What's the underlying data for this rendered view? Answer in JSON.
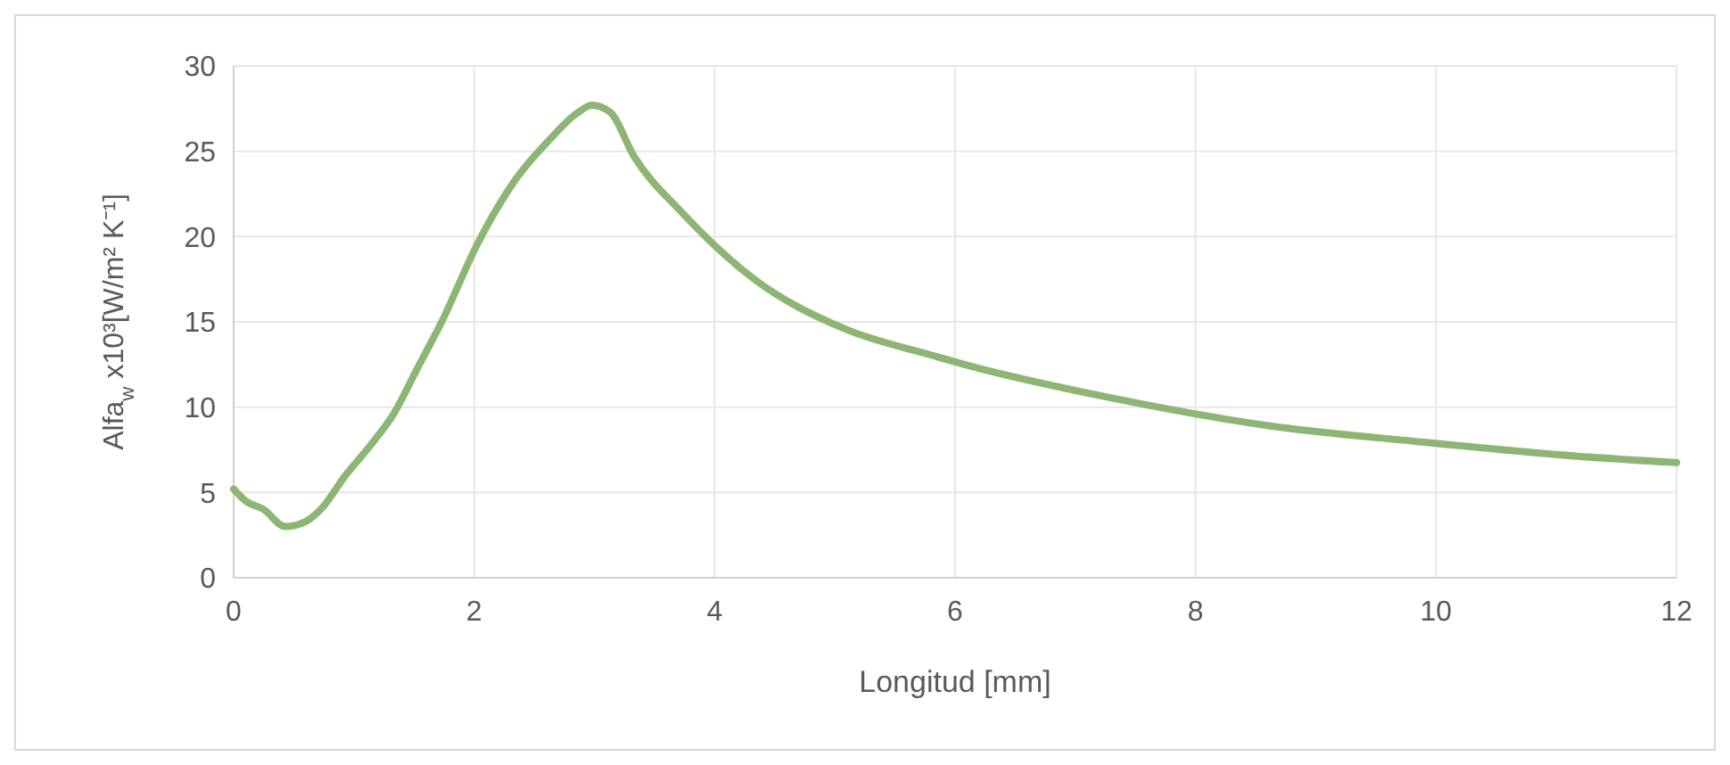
{
  "chart_data": {
    "type": "line",
    "xlabel": "Longitud [mm]",
    "ylabel": "Alfa$_{w}$ x10³[W/m² K⁻¹]",
    "xlim": [
      0,
      12
    ],
    "xticks": [
      0,
      2,
      4,
      6,
      8,
      10,
      12
    ],
    "ylim": [
      0,
      30
    ],
    "yticks": [
      0,
      5,
      10,
      15,
      20,
      25,
      30
    ],
    "grid": true,
    "marker": "none",
    "line_style": "solid",
    "series": [
      {
        "color": "#8db573",
        "x": [
          0,
          0.1,
          0.25,
          0.43,
          0.6,
          0.73,
          0.93,
          1.13,
          1.33,
          1.53,
          1.73,
          2.03,
          2.33,
          2.63,
          2.85,
          2.98,
          3.13,
          3.33,
          3.73,
          4.33,
          5.08,
          5.83,
          6.08,
          7.33,
          8.62,
          9.82,
          11.22,
          12
        ],
        "values": [
          5.2,
          4.5,
          4.0,
          3.0,
          3.3,
          4.05,
          6.0,
          7.7,
          9.6,
          12.3,
          15.0,
          19.6,
          23.2,
          25.7,
          27.2,
          27.7,
          27.3,
          24.7,
          21.4,
          17.5,
          14.6,
          13.0,
          12.5,
          10.5,
          8.9,
          8.0,
          7.1,
          6.75
        ]
      }
    ]
  }
}
